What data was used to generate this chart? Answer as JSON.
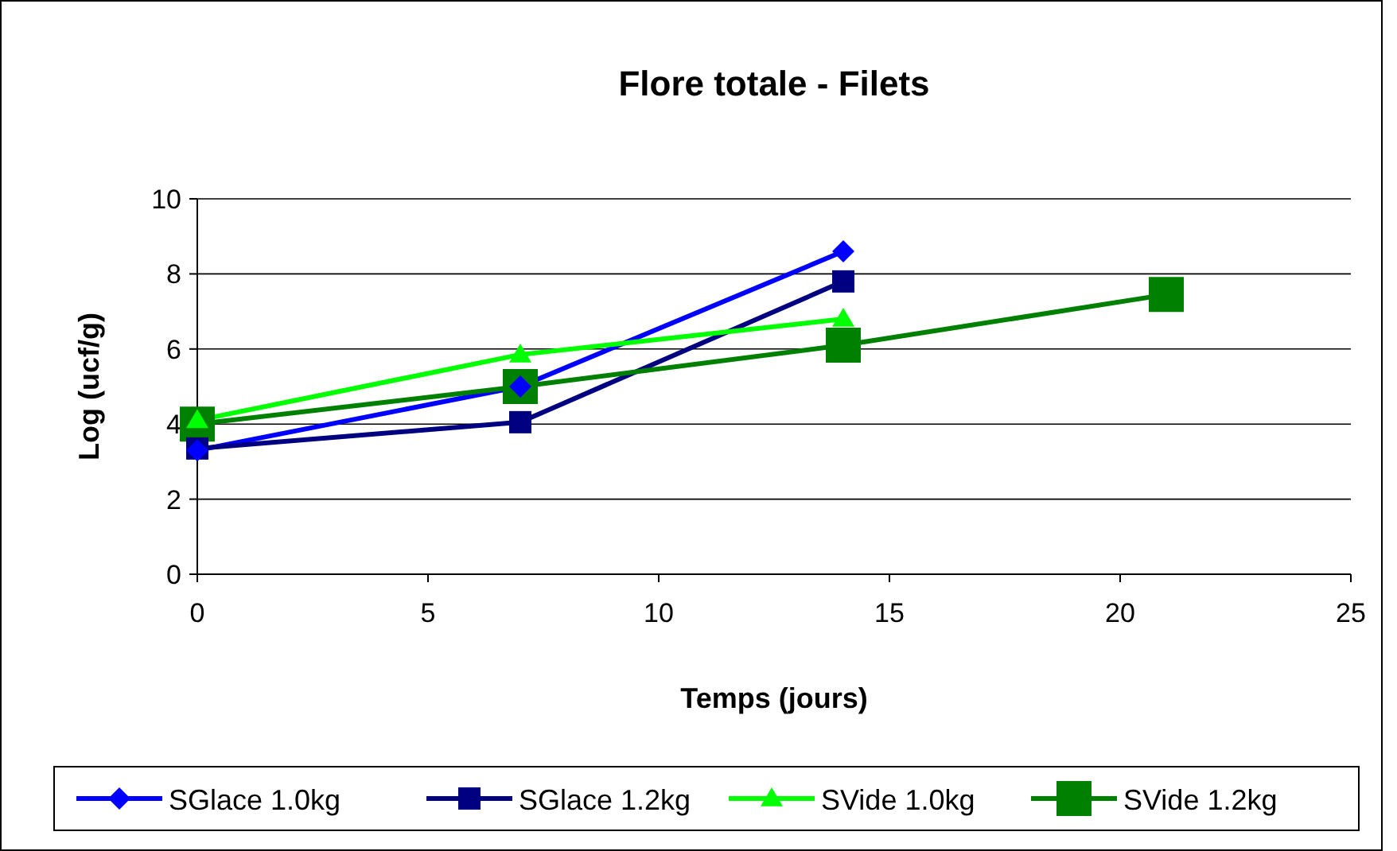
{
  "chart_data": {
    "type": "line",
    "title": "Flore totale - Filets",
    "xlabel": "Temps (jours)",
    "ylabel": "Log (ucf/g)",
    "xlim": [
      0,
      25
    ],
    "xticks": [
      0,
      5,
      10,
      15,
      20,
      25
    ],
    "ylim": [
      0,
      10
    ],
    "yticks": [
      0,
      2,
      4,
      6,
      8,
      10
    ],
    "grid": "y",
    "legend": "bottom",
    "series": [
      {
        "name": "SGlace 1.0kg",
        "color": "#0000ff",
        "marker": "diamond",
        "x": [
          0,
          7,
          14
        ],
        "values": [
          3.3,
          5.0,
          8.6
        ]
      },
      {
        "name": "SGlace 1.2kg",
        "color": "#000080",
        "marker": "square",
        "x": [
          0,
          7,
          14
        ],
        "values": [
          3.35,
          4.05,
          7.8
        ]
      },
      {
        "name": "SVide 1.0kg",
        "color": "#00ff00",
        "marker": "triangle",
        "x": [
          0,
          7,
          14
        ],
        "values": [
          4.1,
          5.85,
          6.8
        ]
      },
      {
        "name": "SVide 1.2kg",
        "color": "#008000",
        "marker": "square",
        "x": [
          0,
          7,
          14,
          21
        ],
        "values": [
          4.0,
          5.0,
          6.1,
          7.45
        ]
      }
    ]
  }
}
